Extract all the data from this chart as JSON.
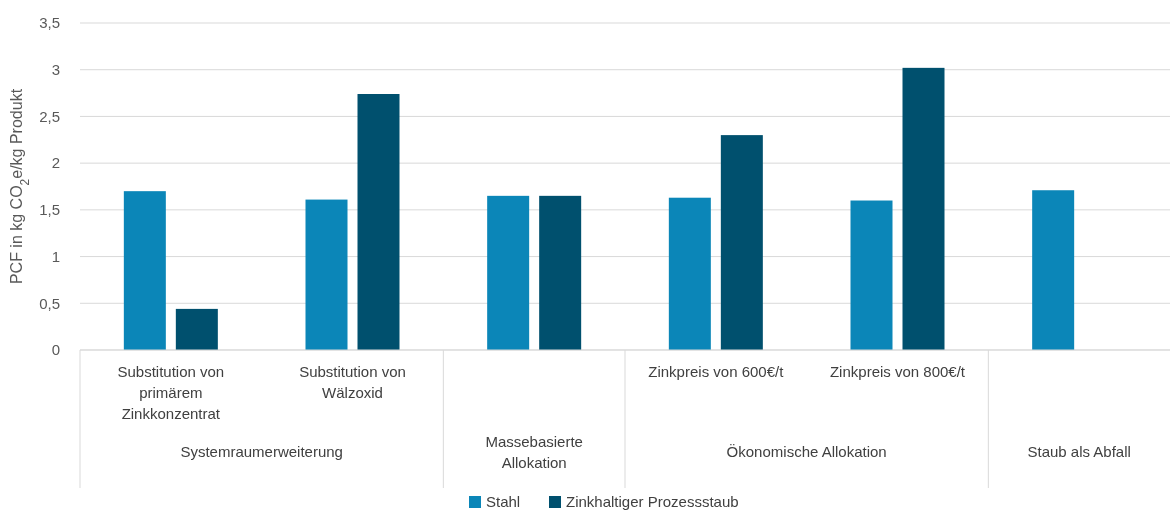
{
  "chart_data": {
    "type": "bar",
    "ylabel": "PCF in kg CO$_{2}$e/kg Produkt",
    "categories": [
      "Substitution von primärem Zinkkonzentrat",
      "Substitution von Wälzoxid",
      null,
      "Zinkpreis von 600€/t",
      "Zinkpreis von 800€/t",
      null
    ],
    "series": [
      {
        "name": "Stahl",
        "color": "#0b86b8",
        "values": [
          1.7,
          1.61,
          1.65,
          1.63,
          1.6,
          1.71
        ]
      },
      {
        "name": "Zinkhaltiger Prozessstaub",
        "color": "#00506e",
        "values": [
          0.44,
          2.74,
          1.65,
          2.3,
          3.02,
          null
        ]
      }
    ],
    "annotations": [
      "Systemraumerweiterung",
      "Massebasierte Allokation",
      "Ökonomische Allokation",
      "Staub als Abfall"
    ],
    "ylim": [
      0,
      3.5
    ],
    "yticks": [
      0,
      {
        "value": 0.5,
        "label": "0,5"
      },
      1,
      {
        "value": 1.5,
        "label": "1,5"
      },
      2,
      {
        "value": 2.5,
        "label": "2,5"
      },
      3,
      {
        "value": 3.5,
        "label": "3,5"
      }
    ],
    "grid": "y",
    "legend": "bottom"
  }
}
